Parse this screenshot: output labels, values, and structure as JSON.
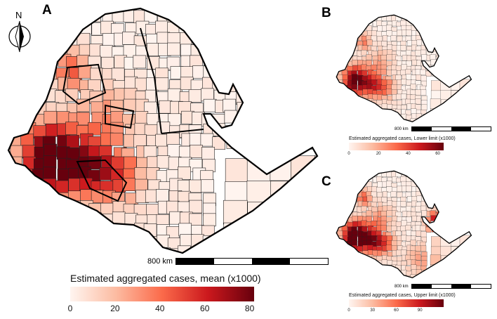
{
  "panels": [
    {
      "id": "A",
      "label": "A",
      "north_label": "N",
      "scale_label": "800 km",
      "legend_title": "Estimated aggregated cases, mean (x1000)",
      "legend_ticks": [
        "0",
        "20",
        "40",
        "60",
        "80"
      ],
      "legend_max": 82,
      "colors": [
        "#fff5f0",
        "#fcbba1",
        "#fb6a4a",
        "#cb181d",
        "#67000d"
      ]
    },
    {
      "id": "B",
      "label": "B",
      "scale_label": "800 km",
      "legend_title": "Estimated aggregated cases, Lower limit (x1000)",
      "legend_ticks": [
        "0",
        "20",
        "40",
        "60"
      ],
      "legend_max": 64,
      "colors": [
        "#fff5f0",
        "#fcbba1",
        "#fb6a4a",
        "#cb181d",
        "#67000d"
      ]
    },
    {
      "id": "C",
      "label": "C",
      "scale_label": "800 km",
      "legend_title": "Estimated aggregated cases, Upper limit (x1000)",
      "legend_ticks": [
        "0",
        "30",
        "60",
        "90"
      ],
      "legend_max": 120,
      "colors": [
        "#fff5f0",
        "#fcbba1",
        "#fb6a4a",
        "#cb181d",
        "#67000d"
      ]
    }
  ]
}
